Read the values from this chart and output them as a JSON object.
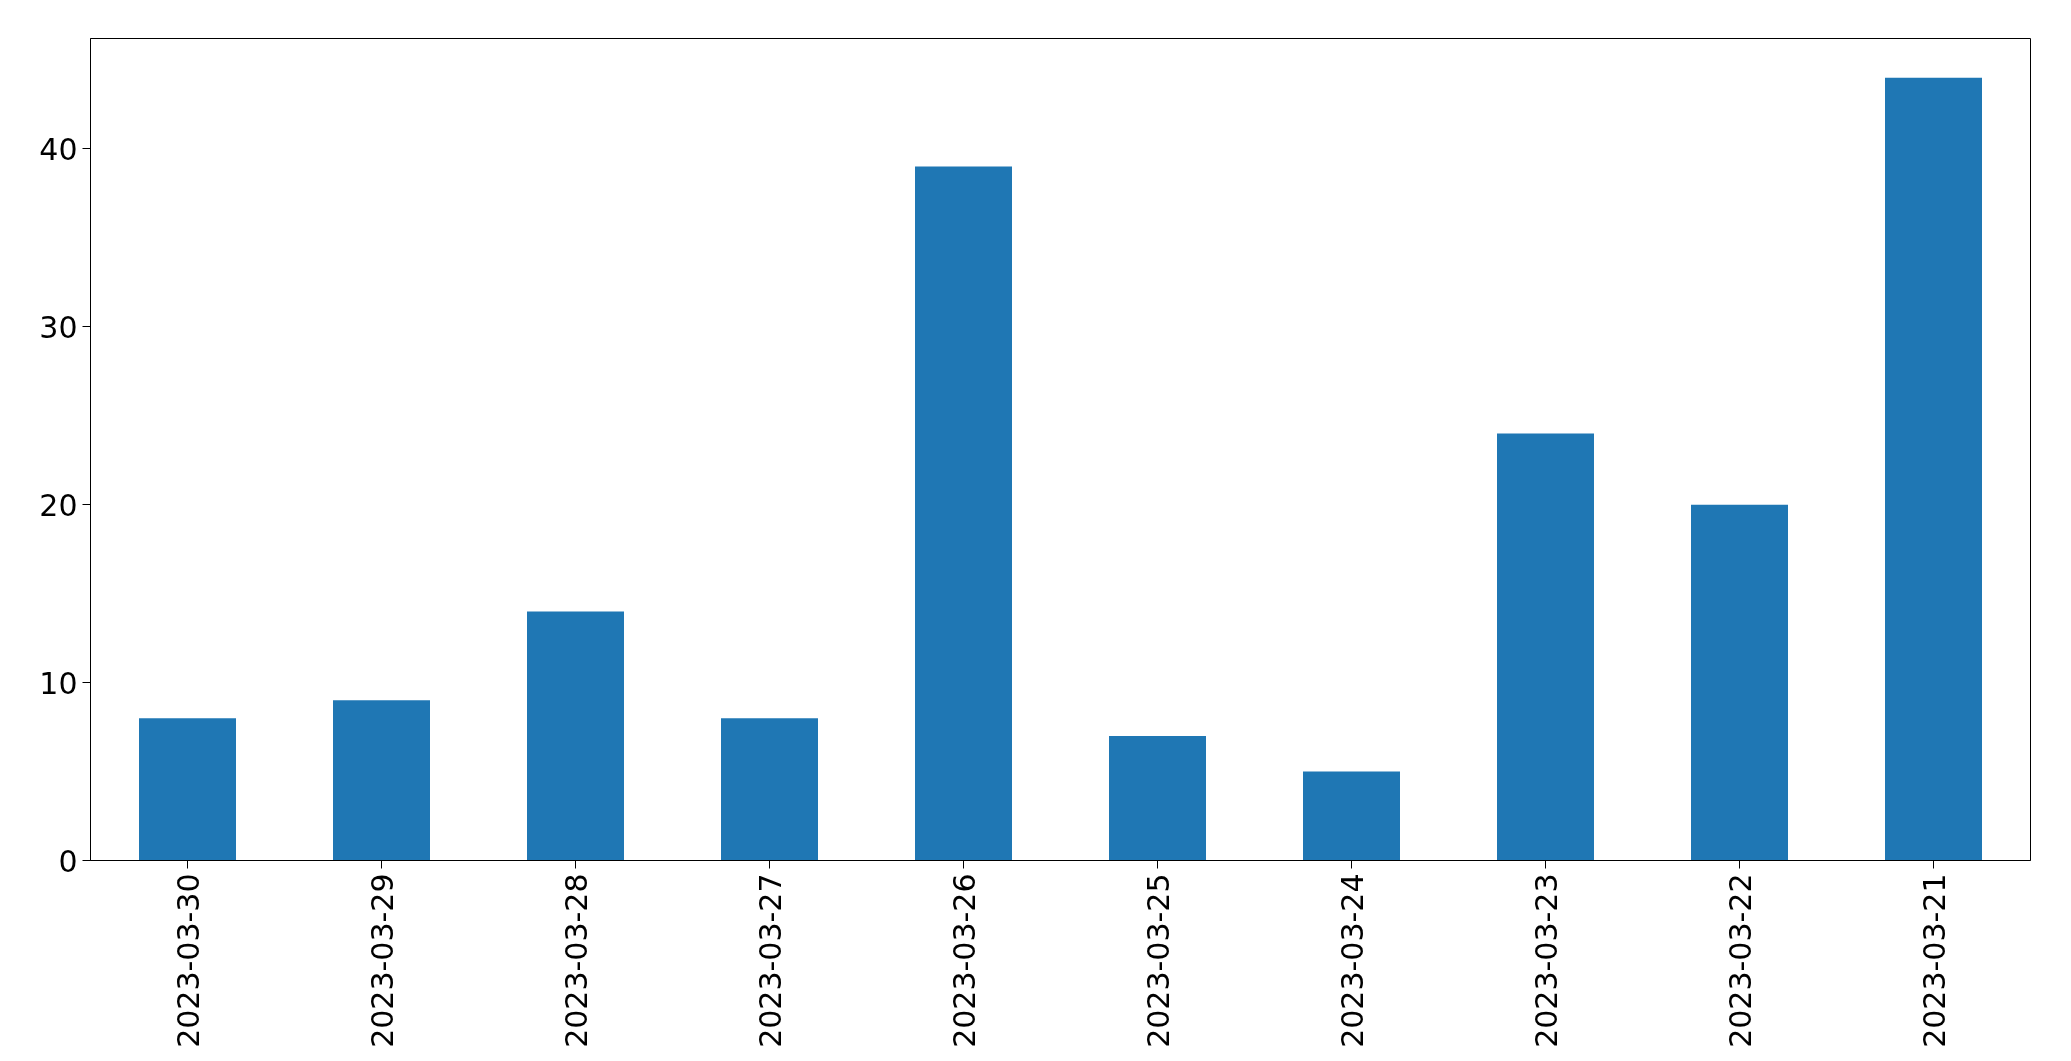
{
  "chart_data": {
    "type": "bar",
    "categories": [
      "2023-03-30",
      "2023-03-29",
      "2023-03-28",
      "2023-03-27",
      "2023-03-26",
      "2023-03-25",
      "2023-03-24",
      "2023-03-23",
      "2023-03-22",
      "2023-03-21"
    ],
    "values": [
      8,
      9,
      14,
      8,
      39,
      7,
      5,
      24,
      20,
      44
    ],
    "color": "#1f77b4",
    "ylim": [
      0,
      46.2
    ],
    "yticks": [
      0,
      10,
      20,
      30,
      40
    ],
    "grid": false
  }
}
